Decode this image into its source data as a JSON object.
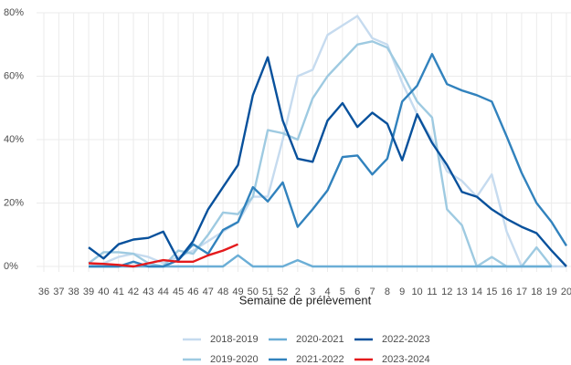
{
  "chart_data": {
    "type": "line",
    "x_label": "Semaine de prélèvement",
    "categories": [
      "36",
      "37",
      "38",
      "39",
      "40",
      "41",
      "42",
      "43",
      "44",
      "45",
      "46",
      "47",
      "48",
      "49",
      "50",
      "51",
      "52",
      "2",
      "3",
      "4",
      "5",
      "6",
      "7",
      "8",
      "9",
      "10",
      "11",
      "12",
      "13",
      "14",
      "15",
      "16",
      "17",
      "18",
      "19",
      "20"
    ],
    "series": [
      {
        "name": "2018-2019",
        "color": "#c6dbef",
        "values": [
          null,
          null,
          null,
          0,
          1,
          3,
          4,
          3,
          1,
          3,
          5,
          8,
          11,
          14,
          22,
          22,
          40,
          60,
          62,
          73,
          76,
          79,
          72,
          70,
          58,
          48,
          40,
          30,
          27,
          22,
          29,
          11,
          0,
          0,
          0,
          0
        ]
      },
      {
        "name": "2019-2020",
        "color": "#9ecae1",
        "values": [
          null,
          null,
          null,
          1,
          4.5,
          4.5,
          4,
          1,
          0,
          5,
          4,
          10,
          17,
          16.5,
          22,
          43,
          42,
          40,
          53,
          60,
          65,
          70,
          71,
          69,
          61,
          52,
          47,
          18,
          13,
          0,
          3,
          0,
          0,
          6,
          0,
          null
        ]
      },
      {
        "name": "2020-2021",
        "color": "#6baed6",
        "values": [
          null,
          null,
          null,
          0,
          0,
          0,
          0,
          0,
          0,
          0,
          0,
          0,
          0,
          3.5,
          0,
          0,
          0,
          2,
          0,
          0,
          0,
          0,
          0,
          0,
          0,
          0,
          0,
          0,
          0,
          0,
          0,
          0,
          0,
          0,
          0,
          null
        ]
      },
      {
        "name": "2021-2022",
        "color": "#3182bd",
        "values": [
          null,
          null,
          null,
          0,
          0,
          0,
          1.5,
          0,
          0,
          2,
          7,
          4,
          11.5,
          14,
          25,
          20.5,
          26.5,
          12.5,
          18,
          24,
          34.5,
          35,
          29,
          34,
          52,
          57,
          67,
          57.5,
          55.5,
          54,
          52,
          41,
          29.5,
          20,
          14,
          6.5
        ]
      },
      {
        "name": "2022-2023",
        "color": "#08519c",
        "values": [
          null,
          null,
          null,
          6,
          2.5,
          7,
          8.5,
          9,
          11,
          2,
          8,
          18,
          25,
          32,
          54,
          66,
          46,
          34,
          33,
          46,
          51.5,
          44,
          48.5,
          45,
          33.5,
          48,
          39,
          32,
          23.5,
          22,
          18,
          15,
          12.5,
          10.5,
          5,
          0
        ]
      },
      {
        "name": "2023-2024",
        "color": "#e41a1c",
        "values": [
          null,
          null,
          null,
          1,
          0.8,
          0.5,
          0,
          1,
          2,
          1.5,
          1.5,
          3.5,
          5,
          7,
          null,
          null,
          null,
          null,
          null,
          null,
          null,
          null,
          null,
          null,
          null,
          null,
          null,
          null,
          null,
          null,
          null,
          null,
          null,
          null,
          null,
          null
        ]
      }
    ],
    "ylim": [
      0,
      80
    ],
    "yticks": [
      {
        "value": 0,
        "label": "0%"
      },
      {
        "value": 20,
        "label": "20%"
      },
      {
        "value": 40,
        "label": "40%"
      },
      {
        "value": 60,
        "label": "60%"
      },
      {
        "value": 80,
        "label": "80%"
      }
    ],
    "grid": true
  }
}
